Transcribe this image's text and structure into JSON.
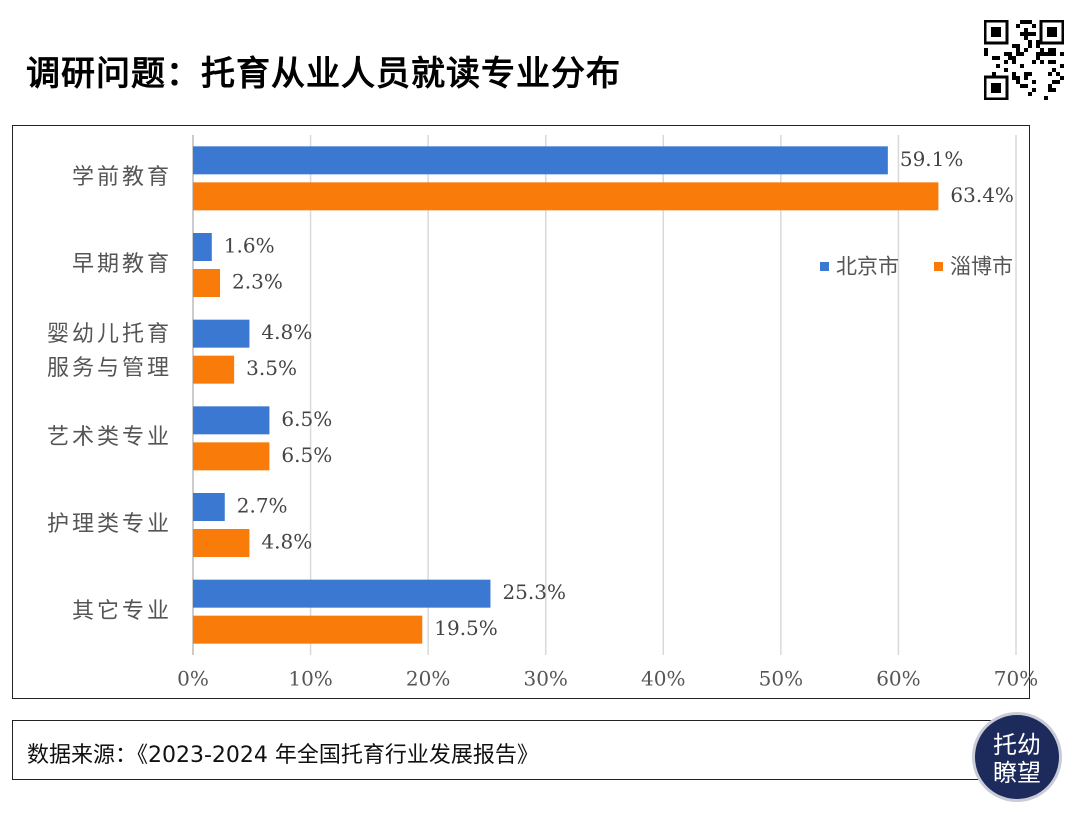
{
  "chart_data": {
    "type": "hbar",
    "title": "调研问题：托育从业人员就读专业分布",
    "source": "数据来源：《2023-2024 年全国托育行业发展报告》",
    "categories": [
      "学前教育",
      "早期教育",
      "婴幼儿托育服务与管理",
      "艺术类专业",
      "护理类专业",
      "其它专业"
    ],
    "series": [
      {
        "name": "北京市",
        "color": "#3a78d2",
        "values": [
          59.1,
          1.6,
          4.8,
          6.5,
          2.7,
          25.3
        ],
        "value_labels": [
          "59.1%",
          "1.6%",
          "4.8%",
          "6.5%",
          "2.7%",
          "25.3%"
        ]
      },
      {
        "name": "淄博市",
        "color": "#f97c0b",
        "values": [
          63.4,
          2.3,
          3.5,
          6.5,
          4.8,
          19.5
        ],
        "value_labels": [
          "63.4%",
          "2.3%",
          "3.5%",
          "6.5%",
          "4.8%",
          "19.5%"
        ]
      }
    ],
    "xlim": [
      0,
      70
    ],
    "xticks": [
      {
        "value": 0,
        "label": "0%"
      },
      {
        "value": 10,
        "label": "10%"
      },
      {
        "value": 20,
        "label": "20%"
      },
      {
        "value": 30,
        "label": "30%"
      },
      {
        "value": 40,
        "label": "40%"
      },
      {
        "value": 50,
        "label": "50%"
      },
      {
        "value": 60,
        "label": "60%"
      },
      {
        "value": 70,
        "label": "70%"
      }
    ],
    "grid": true,
    "legend": "right"
  },
  "logo": {
    "lines": [
      "托幼",
      "瞭望"
    ]
  }
}
